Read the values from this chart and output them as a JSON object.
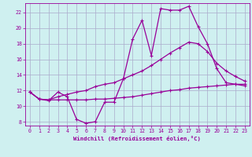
{
  "xlabel": "Windchill (Refroidissement éolien,°C)",
  "bg_color": "#cff0f0",
  "grid_color": "#aaaacc",
  "line_color": "#990099",
  "xlim": [
    -0.5,
    23.5
  ],
  "ylim": [
    7.5,
    23.2
  ],
  "xticks": [
    0,
    1,
    2,
    3,
    4,
    5,
    6,
    7,
    8,
    9,
    10,
    11,
    12,
    13,
    14,
    15,
    16,
    17,
    18,
    19,
    20,
    21,
    22,
    23
  ],
  "yticks": [
    8,
    10,
    12,
    14,
    16,
    18,
    20,
    22
  ],
  "line1_x": [
    0,
    1,
    2,
    3,
    4,
    5,
    6,
    7,
    8,
    9,
    10,
    11,
    12,
    13,
    14,
    15,
    16,
    17,
    18,
    19,
    20,
    21,
    22,
    23
  ],
  "line1_y": [
    11.8,
    10.9,
    10.7,
    11.8,
    11.2,
    8.3,
    7.8,
    8.0,
    10.5,
    10.5,
    13.5,
    18.6,
    21.0,
    16.5,
    22.5,
    22.3,
    22.3,
    22.8,
    20.2,
    18.0,
    14.8,
    13.0,
    12.8,
    12.6
  ],
  "line2_x": [
    0,
    1,
    2,
    3,
    4,
    5,
    6,
    7,
    8,
    9,
    10,
    11,
    12,
    13,
    14,
    15,
    16,
    17,
    18,
    19,
    20,
    21,
    22,
    23
  ],
  "line2_y": [
    11.8,
    10.9,
    10.8,
    11.2,
    11.5,
    11.8,
    12.0,
    12.5,
    12.8,
    13.0,
    13.5,
    14.0,
    14.5,
    15.2,
    16.0,
    16.8,
    17.5,
    18.2,
    18.0,
    17.0,
    15.5,
    14.5,
    13.8,
    13.2
  ],
  "line3_x": [
    0,
    1,
    2,
    3,
    4,
    5,
    6,
    7,
    8,
    9,
    10,
    11,
    12,
    13,
    14,
    15,
    16,
    17,
    18,
    19,
    20,
    21,
    22,
    23
  ],
  "line3_y": [
    11.8,
    10.9,
    10.8,
    10.8,
    10.8,
    10.8,
    10.8,
    10.9,
    10.9,
    11.0,
    11.1,
    11.2,
    11.4,
    11.6,
    11.8,
    12.0,
    12.1,
    12.3,
    12.4,
    12.5,
    12.6,
    12.7,
    12.8,
    12.8
  ]
}
